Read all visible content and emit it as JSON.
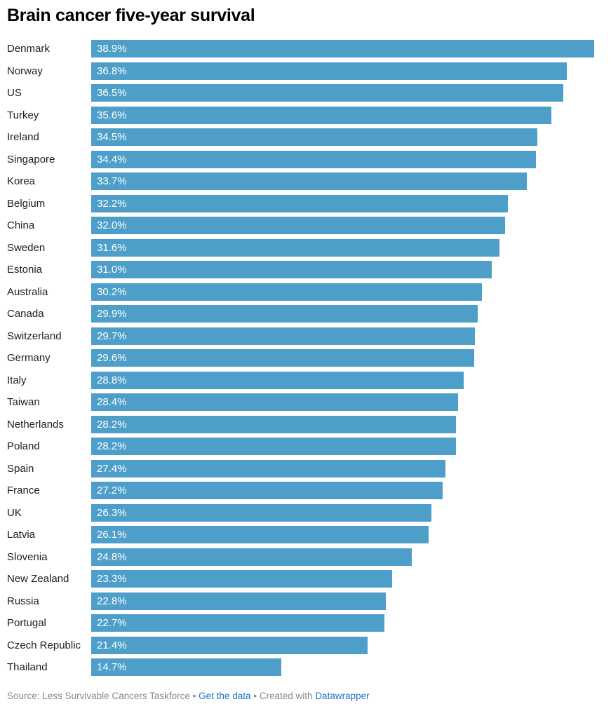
{
  "chart_data": {
    "type": "bar",
    "orientation": "horizontal",
    "title": "Brain cancer five-year survival",
    "categories": [
      "Denmark",
      "Norway",
      "US",
      "Turkey",
      "Ireland",
      "Singapore",
      "Korea",
      "Belgium",
      "China",
      "Sweden",
      "Estonia",
      "Australia",
      "Canada",
      "Switzerland",
      "Germany",
      "Italy",
      "Taiwan",
      "Netherlands",
      "Poland",
      "Spain",
      "France",
      "UK",
      "Latvia",
      "Slovenia",
      "New Zealand",
      "Russia",
      "Portugal",
      "Czech Republic",
      "Thailand"
    ],
    "values": [
      38.9,
      36.8,
      36.5,
      35.6,
      34.5,
      34.4,
      33.7,
      32.2,
      32.0,
      31.6,
      31.0,
      30.2,
      29.9,
      29.7,
      29.6,
      28.8,
      28.4,
      28.2,
      28.2,
      27.4,
      27.2,
      26.3,
      26.1,
      24.8,
      23.3,
      22.8,
      22.7,
      21.4,
      14.7
    ],
    "value_labels": [
      "38.9%",
      "36.8%",
      "36.5%",
      "35.6%",
      "34.5%",
      "34.4%",
      "33.7%",
      "32.2%",
      "32.0%",
      "31.6%",
      "31.0%",
      "30.2%",
      "29.9%",
      "29.7%",
      "29.6%",
      "28.8%",
      "28.4%",
      "28.2%",
      "28.2%",
      "27.4%",
      "27.2%",
      "26.3%",
      "26.1%",
      "24.8%",
      "23.3%",
      "22.8%",
      "22.7%",
      "21.4%",
      "14.7%"
    ],
    "xlabel": "",
    "ylabel": "",
    "xlim": [
      0,
      38.9
    ],
    "grid": "off",
    "legend": "none",
    "value_labels_position": "inside-start",
    "bar_color": "#4d9fca",
    "value_label_color": "#ffffff"
  },
  "footer": {
    "source_prefix": "Source:",
    "source_name": "Less Survivable Cancers Taskforce",
    "separator": "•",
    "get_data_link": "Get the data",
    "created_with": "Created with",
    "datawrapper_link": "Datawrapper"
  }
}
